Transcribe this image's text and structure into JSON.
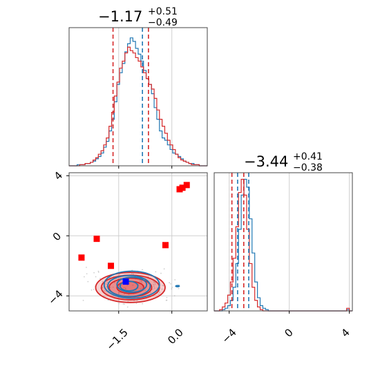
{
  "chart_data": [
    {
      "type": "histogram",
      "panel": "marginal-x",
      "title_main": "−1.17",
      "title_sup": "+0.51",
      "title_sub": "−0.49",
      "xlim": [
        -2.9,
        1.0
      ],
      "grid": true,
      "series": [
        {
          "name": "",
          "color": "#1f77b4",
          "bin_start": -2.9,
          "bin_width": 0.075,
          "values": [
            0,
            0,
            0,
            1,
            1,
            1,
            2,
            2,
            3,
            4,
            6,
            8,
            11,
            16,
            21,
            30,
            40,
            55,
            70,
            80,
            88,
            98,
            105,
            110,
            107,
            101,
            96,
            90,
            82,
            75,
            70,
            62,
            50,
            40,
            30,
            24,
            22,
            18,
            14,
            11,
            10,
            8,
            6,
            4,
            3,
            2,
            2,
            1,
            1,
            0,
            0,
            0
          ],
          "quantiles": [
            -1.66,
            -1.17,
            -0.66
          ]
        },
        {
          "name": "",
          "color": "#d62728",
          "bin_start": -2.9,
          "bin_width": 0.075,
          "values": [
            0,
            0,
            0,
            0,
            1,
            1,
            2,
            2,
            3,
            5,
            7,
            10,
            13,
            18,
            24,
            34,
            46,
            60,
            72,
            84,
            90,
            97,
            102,
            99,
            97,
            93,
            90,
            85,
            80,
            75,
            70,
            66,
            58,
            48,
            40,
            34,
            28,
            22,
            18,
            14,
            10,
            7,
            5,
            4,
            3,
            2,
            1,
            1,
            1,
            0,
            0,
            0
          ],
          "quantiles": [
            -1.66,
            -1.17,
            -0.66
          ]
        }
      ],
      "quantile_lines": [
        {
          "color": "#d62728",
          "x": -1.66
        },
        {
          "color": "#1f77b4",
          "x": -0.83
        },
        {
          "color": "#d62728",
          "x": -0.66
        }
      ]
    },
    {
      "type": "histogram",
      "panel": "marginal-y",
      "title_main": "−3.44",
      "title_sup": "+0.41",
      "title_sub": "−0.38",
      "xlim": [
        -5.0,
        4.2
      ],
      "xticks": [
        "−4",
        "0",
        "4"
      ],
      "grid": true,
      "series": [
        {
          "name": "",
          "color": "#1f77b4",
          "bin_start": -5.0,
          "bin_width": 0.18,
          "values": [
            0,
            0,
            0,
            1,
            2,
            4,
            8,
            18,
            36,
            62,
            88,
            100,
            94,
            70,
            44,
            22,
            10,
            4,
            2,
            1,
            0,
            0,
            0,
            0,
            0,
            0,
            0,
            0,
            0,
            0,
            0,
            0,
            0,
            0,
            0,
            0,
            0,
            0,
            0,
            0,
            0,
            0,
            0,
            0,
            0,
            0,
            0,
            0,
            0,
            1,
            0
          ]
        },
        {
          "name": "",
          "color": "#d62728",
          "bin_start": -5.0,
          "bin_width": 0.18,
          "values": [
            0,
            0,
            1,
            3,
            6,
            12,
            22,
            40,
            64,
            90,
            100,
            88,
            62,
            36,
            18,
            8,
            3,
            1,
            0,
            0,
            0,
            0,
            0,
            0,
            0,
            0,
            0,
            0,
            0,
            0,
            0,
            0,
            0,
            0,
            0,
            0,
            0,
            0,
            0,
            0,
            0,
            0,
            0,
            0,
            0,
            0,
            0,
            0,
            0,
            2,
            0
          ]
        }
      ],
      "quantile_lines": [
        {
          "color": "#d62728",
          "x": -3.82
        },
        {
          "color": "#1f77b4",
          "x": -3.44
        },
        {
          "color": "#d62728",
          "x": -3.03
        },
        {
          "color": "#1f77b4",
          "x": -2.7
        }
      ]
    },
    {
      "type": "contour-scatter",
      "panel": "joint",
      "xlim": [
        -2.9,
        1.0
      ],
      "ylim": [
        -5.0,
        4.2
      ],
      "xticks": [
        "−1.5",
        "0.0"
      ],
      "yticks": [
        "4",
        "0",
        "−4"
      ],
      "grid": true,
      "contours": [
        {
          "color": "#d62728",
          "center": [
            -1.17,
            -3.44
          ],
          "sx": [
            0.38,
            0.6,
            0.82,
            0.98
          ],
          "sy": [
            0.4,
            0.62,
            0.82,
            1.0
          ]
        },
        {
          "color": "#1f77b4",
          "center": [
            -1.17,
            -3.3
          ],
          "sx": [
            0.25,
            0.42,
            0.6,
            0.78
          ],
          "sy": [
            0.32,
            0.5,
            0.7,
            0.9
          ]
        }
      ],
      "markers": [
        {
          "color": "#ff0000",
          "x": -2.55,
          "y": -1.45
        },
        {
          "color": "#ff0000",
          "x": -2.12,
          "y": -0.2
        },
        {
          "color": "#ff0000",
          "x": -1.72,
          "y": -2.0
        },
        {
          "color": "#ff0000",
          "x": -0.18,
          "y": -0.62
        },
        {
          "color": "#ff0000",
          "x": 0.22,
          "y": 3.1
        },
        {
          "color": "#ff0000",
          "x": 0.3,
          "y": 3.2
        },
        {
          "color": "#ff0000",
          "x": 0.42,
          "y": 3.38
        },
        {
          "color": "#0000ff",
          "x": -1.3,
          "y": -3.05
        }
      ]
    }
  ]
}
